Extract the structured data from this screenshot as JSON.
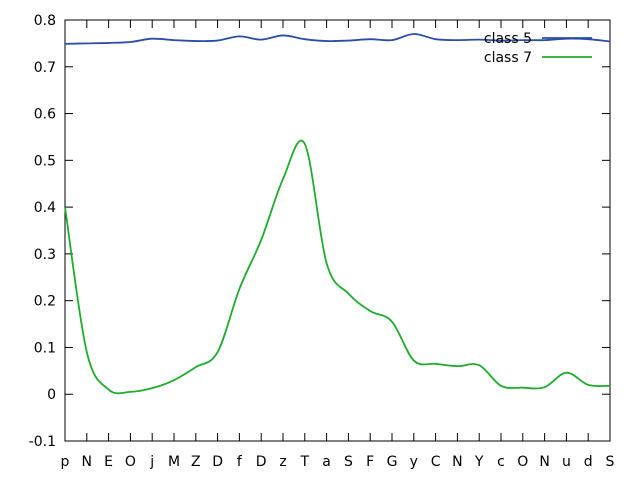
{
  "chart_data": {
    "type": "line",
    "title": "",
    "xlabel": "",
    "ylabel": "",
    "categories": [
      "p",
      "N",
      "E",
      "O",
      "j",
      "M",
      "Z",
      "D",
      "f",
      "D",
      "z",
      "T",
      "a",
      "S",
      "F",
      "G",
      "y",
      "C",
      "N",
      "Y",
      "c",
      "O",
      "N",
      "u",
      "d",
      "S"
    ],
    "ylim": [
      -0.1,
      0.8
    ],
    "yticks": [
      -0.1,
      0,
      0.1,
      0.2,
      0.3,
      0.4,
      0.5,
      0.6,
      0.7,
      0.8
    ],
    "ytick_labels": [
      "-0.1",
      "0",
      "0.1",
      "0.2",
      "0.3",
      "0.4",
      "0.5",
      "0.6",
      "0.7",
      "0.8"
    ],
    "grid": false,
    "legend_position": "top-right",
    "series": [
      {
        "name": "class 5",
        "color": "#2b4ea6",
        "values": [
          0.749,
          0.75,
          0.751,
          0.753,
          0.76,
          0.757,
          0.755,
          0.756,
          0.765,
          0.758,
          0.767,
          0.759,
          0.755,
          0.756,
          0.759,
          0.757,
          0.77,
          0.759,
          0.757,
          0.758,
          0.756,
          0.757,
          0.757,
          0.76,
          0.759,
          0.754
        ]
      },
      {
        "name": "class 7",
        "color": "#1fac2d",
        "values": [
          0.4,
          0.09,
          0.01,
          0.005,
          0.013,
          0.03,
          0.058,
          0.09,
          0.225,
          0.33,
          0.46,
          0.535,
          0.28,
          0.215,
          0.178,
          0.155,
          0.072,
          0.065,
          0.06,
          0.062,
          0.018,
          0.014,
          0.015,
          0.046,
          0.02,
          0.018
        ]
      }
    ]
  }
}
